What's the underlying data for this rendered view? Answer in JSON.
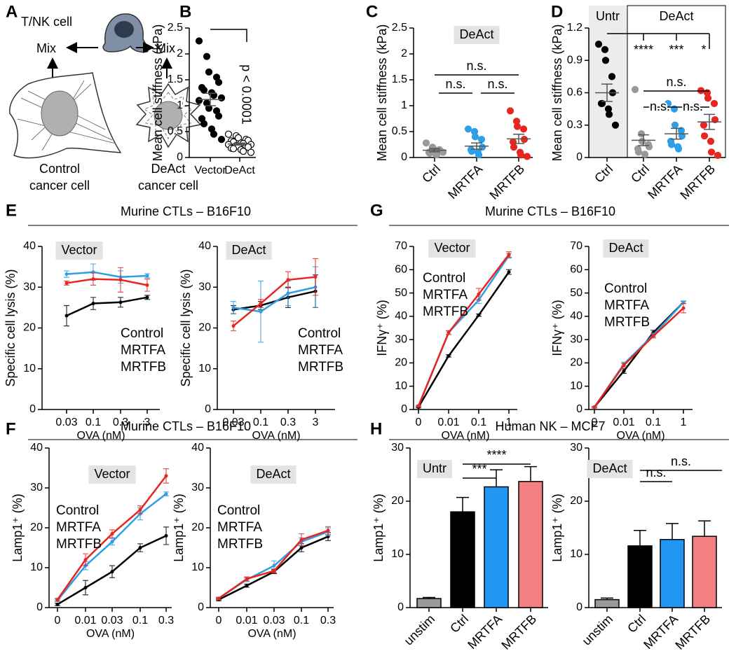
{
  "panels": [
    "A",
    "B",
    "C",
    "D",
    "E",
    "G",
    "F",
    "H"
  ],
  "sections": [
    "Murine CTLs – B16F10",
    "Murine CTLs – B16F10",
    "Murine CTLs – B16F10",
    "Human NK – MCF7"
  ],
  "diagram": {
    "cell": "T/NK cell",
    "mix_left": "Mix",
    "mix_right": "Mix",
    "control": [
      "Control",
      "cancer cell"
    ],
    "deact": [
      "DeAct",
      "cancer cell"
    ]
  },
  "chart_data": [
    {
      "type": "strip",
      "ylabel": "Mean cell stiffness (kPa)",
      "categories": [
        "Vector",
        "DeAct"
      ],
      "ylim": [
        0,
        2.5
      ],
      "yticks": [
        0,
        0.5,
        1,
        1.5,
        2,
        2.5
      ],
      "annotations": [
        "p < 0.0001"
      ],
      "groups": [
        {
          "color": "#000000",
          "hollow": false,
          "mean": 1.12,
          "sem": 0.12,
          "values": [
            2.25,
            1.95,
            1.65,
            1.55,
            1.45,
            1.35,
            1.3,
            1.25,
            1.2,
            1.15,
            1.1,
            1.05,
            0.95,
            0.9,
            0.8,
            0.75,
            0.65,
            0.55,
            0.45,
            0.35
          ]
        },
        {
          "color": "#000000",
          "hollow": true,
          "mean": 0.26,
          "sem": 0.02,
          "values": [
            0.45,
            0.42,
            0.38,
            0.35,
            0.33,
            0.32,
            0.3,
            0.28,
            0.27,
            0.25,
            0.25,
            0.23,
            0.22,
            0.2,
            0.2,
            0.18,
            0.17,
            0.15,
            0.12,
            0.1
          ]
        }
      ]
    },
    {
      "type": "strip",
      "ylabel": "Mean cell stiffness (kPa)",
      "label": "DeAct",
      "categories": [
        "Ctrl",
        "MRTFA",
        "MRTFB"
      ],
      "ylim": [
        0,
        2.5
      ],
      "yticks": [
        0,
        0.5,
        1,
        1.5,
        2,
        2.5
      ],
      "annotations": [
        "n.s.",
        "n.s.",
        "n.s."
      ],
      "groups": [
        {
          "color": "#999999",
          "hollow": false,
          "mean": 0.14,
          "sem": 0.03,
          "values": [
            0.28,
            0.2,
            0.18,
            0.15,
            0.13,
            0.1,
            0.08,
            0.06,
            0.05,
            0.1
          ]
        },
        {
          "color": "#2e9ee6",
          "hollow": false,
          "mean": 0.22,
          "sem": 0.06,
          "values": [
            0.55,
            0.5,
            0.4,
            0.35,
            0.2,
            0.15,
            0.12,
            0.1,
            0.05
          ]
        },
        {
          "color": "#e8251f",
          "hollow": false,
          "mean": 0.36,
          "sem": 0.09,
          "values": [
            0.9,
            0.7,
            0.6,
            0.55,
            0.35,
            0.3,
            0.2,
            0.1,
            0.05,
            0.02
          ]
        }
      ]
    },
    {
      "type": "strip",
      "ylabel": "Mean cell stiffness (kPa)",
      "regions": [
        "Untr",
        "DeAct"
      ],
      "categories": [
        "Ctrl",
        "Ctrl",
        "MRTFA",
        "MRTFB"
      ],
      "ylim": [
        0,
        1.2
      ],
      "yticks": [
        0,
        0.3,
        0.6,
        0.9,
        1.2
      ],
      "annotations": [
        "****",
        "***",
        "*",
        "n.s.",
        "n.s.",
        "n.s."
      ],
      "groups": [
        {
          "color": "#000000",
          "hollow": false,
          "mean": 0.6,
          "sem": 0.08,
          "values": [
            1.05,
            1.0,
            0.9,
            0.75,
            0.6,
            0.5,
            0.5,
            0.45,
            0.4,
            0.3
          ]
        },
        {
          "color": "#999999",
          "hollow": false,
          "mean": 0.16,
          "sem": 0.05,
          "values": [
            0.63,
            0.22,
            0.15,
            0.12,
            0.1,
            0.08,
            0.05,
            0.03
          ]
        },
        {
          "color": "#2e9ee6",
          "hollow": false,
          "mean": 0.22,
          "sem": 0.05,
          "values": [
            0.5,
            0.45,
            0.3,
            0.25,
            0.2,
            0.15,
            0.12,
            0.1,
            0.08
          ]
        },
        {
          "color": "#e8251f",
          "hollow": false,
          "mean": 0.33,
          "sem": 0.07,
          "values": [
            0.62,
            0.6,
            0.55,
            0.5,
            0.35,
            0.3,
            0.2,
            0.15,
            0.05,
            0.02
          ]
        }
      ]
    },
    {
      "type": "line",
      "label": "Vector",
      "ylabel": "Specific cell lysis (%)",
      "xlabel": "OVA (nM)",
      "categories": [
        "0.03",
        "0.1",
        "0.3",
        "3"
      ],
      "ylim": [
        0,
        40
      ],
      "yticks": [
        0,
        10,
        20,
        30,
        40
      ],
      "series": [
        {
          "name": "Control",
          "color": "#000000",
          "values": [
            23,
            26,
            26.3,
            27.5
          ],
          "errors": [
            2.5,
            1.5,
            1.2,
            0.5
          ]
        },
        {
          "name": "MRTFA",
          "color": "#2e9ee6",
          "values": [
            33.2,
            33.7,
            32.5,
            32.8
          ],
          "errors": [
            0.8,
            2,
            1.5,
            0.5
          ]
        },
        {
          "name": "MRTFB",
          "color": "#e8251f",
          "values": [
            31,
            32,
            31.8,
            30.5
          ],
          "errors": [
            0.5,
            1.5,
            3,
            1.5
          ]
        }
      ]
    },
    {
      "type": "line",
      "label": "DeAct",
      "ylabel": "Specific cell lysis (%)",
      "xlabel": "OVA (nM)",
      "categories": [
        "0.03",
        "0.1",
        "0.3",
        "3"
      ],
      "ylim": [
        0,
        40
      ],
      "yticks": [
        0,
        10,
        20,
        30,
        40
      ],
      "series": [
        {
          "name": "Control",
          "color": "#000000",
          "values": [
            24.5,
            25.5,
            27.5,
            29
          ],
          "errors": [
            1,
            1,
            2.5,
            4
          ]
        },
        {
          "name": "MRTFA",
          "color": "#2e9ee6",
          "values": [
            25,
            24,
            28.5,
            30
          ],
          "errors": [
            1.5,
            7.5,
            3,
            5
          ]
        },
        {
          "name": "MRTFB",
          "color": "#e8251f",
          "values": [
            20.5,
            26,
            31.8,
            32.5
          ],
          "errors": [
            1.2,
            1,
            2,
            4.5
          ]
        }
      ]
    },
    {
      "type": "line",
      "label": "Vector",
      "ylabel": "IFNγ⁺ (%)",
      "xlabel": "OVA (nM)",
      "categories": [
        "0",
        "0.01",
        "0.1",
        "1"
      ],
      "ylim": [
        0,
        70
      ],
      "yticks": [
        0,
        10,
        20,
        30,
        40,
        50,
        60,
        70
      ],
      "series": [
        {
          "name": "Control",
          "color": "#000000",
          "values": [
            1,
            23,
            40.5,
            59
          ],
          "errors": [
            0.3,
            0.5,
            0.5,
            1
          ]
        },
        {
          "name": "MRTFA",
          "color": "#2e9ee6",
          "values": [
            1.5,
            33,
            47,
            66
          ],
          "errors": [
            0.3,
            0.8,
            1.5,
            1
          ]
        },
        {
          "name": "MRTFB",
          "color": "#e8251f",
          "values": [
            1.5,
            33,
            49.5,
            66.5
          ],
          "errors": [
            0.3,
            0.8,
            2.5,
            1.2
          ]
        }
      ]
    },
    {
      "type": "line",
      "label": "DeAct",
      "ylabel": "IFNγ⁺ (%)",
      "xlabel": "OVA (nM)",
      "categories": [
        "0",
        "0.01",
        "0.1",
        "1"
      ],
      "ylim": [
        0,
        70
      ],
      "yticks": [
        0,
        10,
        20,
        30,
        40,
        50,
        60,
        70
      ],
      "series": [
        {
          "name": "Control",
          "color": "#000000",
          "values": [
            1,
            16.5,
            33,
            46
          ],
          "errors": [
            0.3,
            1,
            1,
            0.5
          ]
        },
        {
          "name": "MRTFA",
          "color": "#2e9ee6",
          "values": [
            1,
            19.5,
            32,
            46
          ],
          "errors": [
            0.3,
            0.8,
            0.8,
            0.5
          ]
        },
        {
          "name": "MRTFB",
          "color": "#e8251f",
          "values": [
            1,
            19,
            31.5,
            43.5
          ],
          "errors": [
            0.3,
            0.8,
            0.8,
            2
          ]
        }
      ]
    },
    {
      "type": "line",
      "label": "Vector",
      "ylabel": "Lamp1⁺ (%)",
      "xlabel": "OVA (nM)",
      "categories": [
        "0",
        "0.01",
        "0.03",
        "0.1",
        "0.3"
      ],
      "ylim": [
        0,
        40
      ],
      "yticks": [
        0,
        10,
        20,
        30,
        40
      ],
      "series": [
        {
          "name": "Control",
          "color": "#000000",
          "values": [
            0.8,
            5,
            9,
            15,
            18
          ],
          "errors": [
            0.3,
            1.8,
            1.5,
            1,
            2.2
          ]
        },
        {
          "name": "MRTFA",
          "color": "#2e9ee6",
          "values": [
            1.8,
            10.5,
            16.5,
            23.5,
            28.5
          ],
          "errors": [
            0.3,
            1,
            0.8,
            1.5,
            0.5
          ]
        },
        {
          "name": "MRTFB",
          "color": "#e8251f",
          "values": [
            2,
            12,
            18.5,
            24.5,
            33
          ],
          "errors": [
            0.3,
            1.5,
            1,
            1,
            1.8
          ]
        }
      ]
    },
    {
      "type": "line",
      "label": "DeAct",
      "ylabel": "Lamp1⁺ (%)",
      "xlabel": "OVA (nM)",
      "categories": [
        "0",
        "0.01",
        "0.03",
        "0.1",
        "0.3"
      ],
      "ylim": [
        0,
        40
      ],
      "yticks": [
        0,
        10,
        20,
        30,
        40
      ],
      "series": [
        {
          "name": "Control",
          "color": "#000000",
          "values": [
            2,
            5.5,
            9,
            15,
            17.8
          ],
          "errors": [
            0.3,
            0.4,
            0.5,
            1,
            1
          ]
        },
        {
          "name": "MRTFA",
          "color": "#2e9ee6",
          "values": [
            2.3,
            7,
            10.5,
            16.5,
            19
          ],
          "errors": [
            0.3,
            0.5,
            1.2,
            1,
            1
          ]
        },
        {
          "name": "MRTFB",
          "color": "#e8251f",
          "values": [
            2.3,
            7.2,
            9.2,
            17,
            19.3
          ],
          "errors": [
            0.3,
            0.5,
            0.5,
            1.5,
            1
          ]
        }
      ]
    },
    {
      "type": "bar",
      "label": "Untr",
      "ylabel": "Lamp1⁺ (%)",
      "categories": [
        "unstim",
        "Ctrl",
        "MRTFA",
        "MRTFB"
      ],
      "ylim": [
        0,
        30
      ],
      "yticks": [
        0,
        10,
        20,
        30
      ],
      "annotations": [
        "***",
        "****"
      ],
      "colors": [
        "#999999",
        "#000000",
        "#2196f3",
        "#f28080"
      ],
      "values": [
        1.7,
        18,
        22.7,
        23.7
      ],
      "errors": [
        0.2,
        2.7,
        3.2,
        2.8
      ]
    },
    {
      "type": "bar",
      "label": "DeAct",
      "ylabel": "Lamp1⁺ (%)",
      "categories": [
        "unstim",
        "Ctrl",
        "MRTFA",
        "MRTFB"
      ],
      "ylim": [
        0,
        30
      ],
      "yticks": [
        0,
        10,
        20,
        30
      ],
      "annotations": [
        "n.s.",
        "n.s."
      ],
      "colors": [
        "#999999",
        "#000000",
        "#2196f3",
        "#f28080"
      ],
      "values": [
        1.5,
        11.6,
        12.8,
        13.4
      ],
      "errors": [
        0.3,
        2.9,
        3,
        2.9
      ]
    }
  ]
}
